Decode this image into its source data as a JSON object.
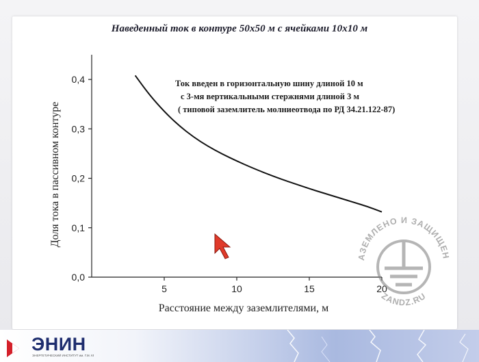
{
  "slide": {
    "title": "Наведенный ток в контуре 50х50 м с ячейками 10х10 м"
  },
  "chart_data": {
    "type": "line",
    "title": "Наведенный ток в контуре 50х50 м с ячейками 10х10 м",
    "xlabel": "Расстояние между заземлителями,  м",
    "ylabel": "Доля тока в пассивном контуре",
    "xlim": [
      0,
      20
    ],
    "ylim": [
      0,
      0.45
    ],
    "x_ticks": [
      5,
      10,
      15,
      20
    ],
    "x_tick_labels": [
      "5",
      "10",
      "15",
      "20"
    ],
    "y_ticks": [
      0,
      0.1,
      0.2,
      0.3,
      0.4
    ],
    "y_tick_labels": [
      "0,0",
      "0,1",
      "0,2",
      "0,3",
      "0,4"
    ],
    "grid": false,
    "series": [
      {
        "x": [
          3,
          4,
          5,
          6,
          7,
          8,
          9,
          10,
          11,
          12,
          13,
          14,
          15,
          16,
          17,
          18,
          19,
          20
        ],
        "y": [
          0.408,
          0.368,
          0.335,
          0.307,
          0.284,
          0.265,
          0.249,
          0.235,
          0.222,
          0.21,
          0.199,
          0.189,
          0.179,
          0.17,
          0.161,
          0.152,
          0.143,
          0.132
        ]
      }
    ],
    "annotation": [
      "Ток введен в горизонтальную шину длиной 10 м",
      "с 3-мя вертикальными стержнями длиной 3 м",
      "( типовой заземлитель молниеотвода по РД 34.21.122-87)"
    ],
    "line_color": "#111111"
  },
  "footer": {
    "logo_name": "ЭНИН",
    "logo_subtitle": "ЭНЕРГЕТИЧЕСКИЙ ИНСТИТУТ им. Г.М. КРЖИЖАНОВСКОГО",
    "logo_color": "#1e2d6e",
    "logo_accent": "#d4202a"
  },
  "watermark": {
    "top_text": "ЗАЗЕМЛЕНО И ЗАЩИЩЕНО",
    "bottom_text": "ZANDZ.RU",
    "icon": "ground-symbol-icon"
  }
}
